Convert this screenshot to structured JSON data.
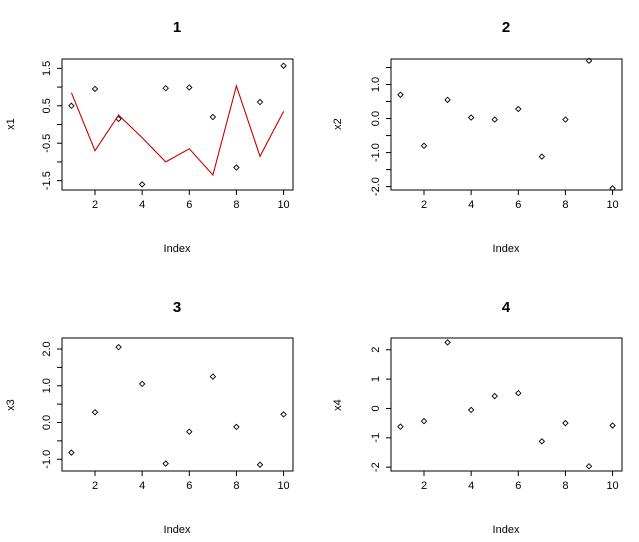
{
  "colors": {
    "points": "#000000",
    "line": "#cc0000",
    "background": "#ffffff"
  },
  "chart_data": [
    {
      "type": "scatter",
      "title": "1",
      "xlabel": "Index",
      "ylabel": "x1",
      "xlim": [
        0.6,
        10.4
      ],
      "ylim": [
        -1.75,
        1.75
      ],
      "xticks": [
        2,
        4,
        6,
        8,
        10
      ],
      "xtick_labels": [
        "2",
        "4",
        "6",
        "8",
        "10"
      ],
      "yticks": [
        -1.5,
        -0.5,
        0.5,
        1.5
      ],
      "ytick_labels": [
        "-1.5",
        "-0.5",
        "0.5",
        "1.5"
      ],
      "yminor_ticks": [
        -1.0,
        0.0,
        1.0
      ],
      "grid": false,
      "series": [
        {
          "kind": "points",
          "x": [
            1,
            2,
            3,
            4,
            5,
            6,
            7,
            8,
            9,
            10
          ],
          "y": [
            0.5,
            0.95,
            0.15,
            -1.6,
            0.97,
            0.99,
            0.2,
            -1.15,
            0.6,
            1.57
          ]
        },
        {
          "kind": "line",
          "color": "#cc0000",
          "x": [
            1,
            2,
            3,
            4,
            5,
            6,
            7,
            8,
            9,
            10
          ],
          "y": [
            0.85,
            -0.7,
            0.25,
            -0.35,
            -1.0,
            -0.65,
            -1.35,
            1.03,
            -0.85,
            0.35
          ]
        }
      ]
    },
    {
      "type": "scatter",
      "title": "2",
      "xlabel": "Index",
      "ylabel": "x2",
      "xlim": [
        0.6,
        10.4
      ],
      "ylim": [
        -2.1,
        1.75
      ],
      "xticks": [
        2,
        4,
        6,
        8,
        10
      ],
      "xtick_labels": [
        "2",
        "4",
        "6",
        "8",
        "10"
      ],
      "yticks": [
        -2.0,
        -1.0,
        0.0,
        1.0
      ],
      "ytick_labels": [
        "-2.0",
        "-1.0",
        "0.0",
        "1.0"
      ],
      "yminor_ticks": [
        -1.5,
        -0.5,
        0.5,
        1.5
      ],
      "grid": false,
      "series": [
        {
          "kind": "points",
          "x": [
            1,
            2,
            3,
            4,
            5,
            6,
            7,
            8,
            9,
            10
          ],
          "y": [
            0.7,
            -0.8,
            0.55,
            0.03,
            -0.03,
            0.28,
            -1.12,
            -0.03,
            1.7,
            -2.05
          ]
        }
      ]
    },
    {
      "type": "scatter",
      "title": "3",
      "xlabel": "Index",
      "ylabel": "x3",
      "xlim": [
        0.6,
        10.4
      ],
      "ylim": [
        -1.32,
        2.3
      ],
      "xticks": [
        2,
        4,
        6,
        8,
        10
      ],
      "xtick_labels": [
        "2",
        "4",
        "6",
        "8",
        "10"
      ],
      "yticks": [
        -1.0,
        0.0,
        1.0,
        2.0
      ],
      "ytick_labels": [
        "-1.0",
        "0.0",
        "1.0",
        "2.0"
      ],
      "yminor_ticks": [
        -0.5,
        0.5,
        1.5
      ],
      "grid": false,
      "series": [
        {
          "kind": "points",
          "x": [
            1,
            2,
            3,
            4,
            5,
            6,
            7,
            8,
            9,
            10
          ],
          "y": [
            -0.82,
            0.28,
            2.05,
            1.05,
            -1.12,
            -0.25,
            1.25,
            -0.12,
            -1.15,
            0.22
          ]
        }
      ]
    },
    {
      "type": "scatter",
      "title": "4",
      "xlabel": "Index",
      "ylabel": "x4",
      "xlim": [
        0.6,
        10.4
      ],
      "ylim": [
        -2.13,
        2.4
      ],
      "xticks": [
        2,
        4,
        6,
        8,
        10
      ],
      "xtick_labels": [
        "2",
        "4",
        "6",
        "8",
        "10"
      ],
      "yticks": [
        -2,
        -1,
        0,
        1,
        2
      ],
      "ytick_labels": [
        "-2",
        "-1",
        "0",
        "1",
        "2"
      ],
      "yminor_ticks": [],
      "grid": false,
      "series": [
        {
          "kind": "points",
          "x": [
            1,
            2,
            3,
            4,
            5,
            6,
            7,
            8,
            9,
            10
          ],
          "y": [
            -0.62,
            -0.43,
            2.25,
            -0.05,
            0.42,
            0.52,
            -1.12,
            -0.5,
            -1.97,
            -0.58
          ]
        }
      ]
    }
  ]
}
